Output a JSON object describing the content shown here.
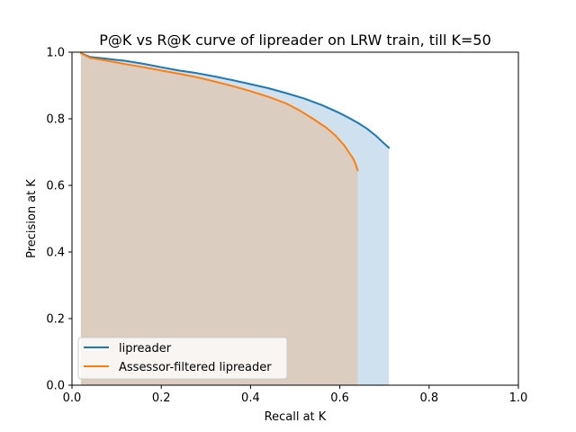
{
  "chart_data": {
    "type": "area",
    "title": "P@K vs R@K curve of lipreader on LRW train, till K=50",
    "xlabel": "Recall at K",
    "ylabel": "Precision at K",
    "xlim": [
      0,
      1
    ],
    "ylim": [
      0,
      1
    ],
    "xticks": [
      "0.0",
      "0.2",
      "0.4",
      "0.6",
      "0.8",
      "1.0"
    ],
    "yticks": [
      "0.0",
      "0.2",
      "0.4",
      "0.6",
      "0.8",
      "1.0"
    ],
    "grid": false,
    "legend_position": "lower-left",
    "series": [
      {
        "name": "lipreader",
        "color": "#1f77b4",
        "fill_color": "#cfe1ee",
        "x": [
          0.02,
          0.04,
          0.08,
          0.12,
          0.16,
          0.2,
          0.24,
          0.28,
          0.32,
          0.36,
          0.4,
          0.44,
          0.48,
          0.52,
          0.56,
          0.6,
          0.62,
          0.64,
          0.66,
          0.68,
          0.7,
          0.71
        ],
        "y": [
          0.997,
          0.986,
          0.98,
          0.974,
          0.965,
          0.955,
          0.945,
          0.937,
          0.927,
          0.916,
          0.904,
          0.892,
          0.877,
          0.861,
          0.841,
          0.817,
          0.803,
          0.788,
          0.771,
          0.75,
          0.725,
          0.713
        ]
      },
      {
        "name": "Assessor-filtered lipreader",
        "color": "#ff7f0e",
        "fill_color": "#dccdc1",
        "x": [
          0.02,
          0.04,
          0.08,
          0.12,
          0.16,
          0.2,
          0.24,
          0.28,
          0.32,
          0.36,
          0.4,
          0.44,
          0.48,
          0.51,
          0.54,
          0.57,
          0.59,
          0.61,
          0.62,
          0.63,
          0.635,
          0.64
        ],
        "y": [
          0.997,
          0.983,
          0.974,
          0.964,
          0.955,
          0.945,
          0.935,
          0.925,
          0.912,
          0.898,
          0.883,
          0.866,
          0.846,
          0.825,
          0.8,
          0.773,
          0.75,
          0.72,
          0.7,
          0.68,
          0.665,
          0.645
        ]
      }
    ]
  }
}
